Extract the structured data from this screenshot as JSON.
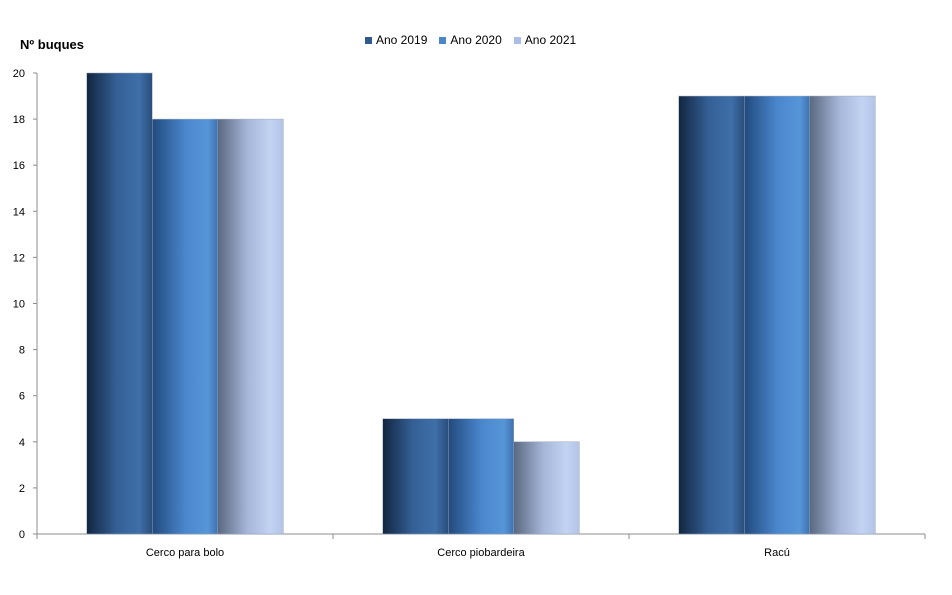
{
  "chart_data": {
    "type": "bar",
    "title": "",
    "ylabel": "Nº  buques",
    "xlabel": "",
    "categories": [
      "Cerco para bolo",
      "Cerco piobardeira",
      "Racú"
    ],
    "series": [
      {
        "name": "Ano 2019",
        "values": [
          20,
          5,
          19
        ],
        "color": "#2e5a8c"
      },
      {
        "name": "Ano 2020",
        "values": [
          18,
          5,
          19
        ],
        "color": "#4a86c8"
      },
      {
        "name": "Ano 2021",
        "values": [
          18,
          4,
          19
        ],
        "color": "#a9bde6"
      }
    ],
    "ylim": [
      0,
      20
    ],
    "yticks": [
      "0",
      "2",
      "4",
      "6",
      "8",
      "10",
      "12",
      "14",
      "16",
      "18",
      "20"
    ],
    "grid": false,
    "legend_position": "top"
  }
}
